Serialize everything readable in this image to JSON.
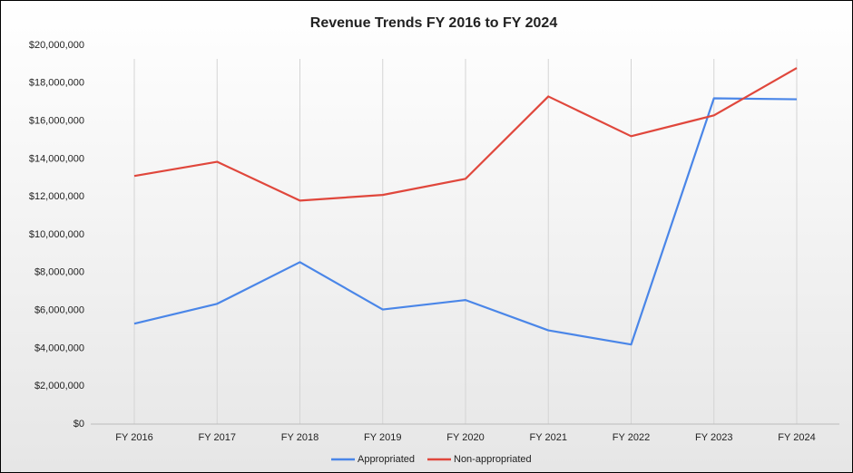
{
  "chart_data": {
    "type": "line",
    "title": "Revenue Trends FY 2016 to FY 2024",
    "categories": [
      "FY 2016",
      "FY 2017",
      "FY 2018",
      "FY 2019",
      "FY 2020",
      "FY 2021",
      "FY 2022",
      "FY 2023",
      "FY 2024"
    ],
    "series": [
      {
        "name": "Appropriated",
        "color": "#4a86e8",
        "values": [
          5300000,
          6350000,
          8550000,
          6050000,
          6550000,
          4950000,
          4200000,
          17200000,
          17150000
        ]
      },
      {
        "name": "Non-appropriated",
        "color": "#e0473c",
        "values": [
          13100000,
          13850000,
          11800000,
          12100000,
          12950000,
          17300000,
          15200000,
          16300000,
          18800000
        ]
      }
    ],
    "ylim": [
      0,
      20000000
    ],
    "yticks": [
      {
        "value": 0,
        "label": "$0"
      },
      {
        "value": 2000000,
        "label": "$2,000,000"
      },
      {
        "value": 4000000,
        "label": "$4,000,000"
      },
      {
        "value": 6000000,
        "label": "$6,000,000"
      },
      {
        "value": 8000000,
        "label": "$8,000,000"
      },
      {
        "value": 10000000,
        "label": "$10,000,000"
      },
      {
        "value": 12000000,
        "label": "$12,000,000"
      },
      {
        "value": 14000000,
        "label": "$14,000,000"
      },
      {
        "value": 16000000,
        "label": "$16,000,000"
      },
      {
        "value": 18000000,
        "label": "$18,000,000"
      },
      {
        "value": 20000000,
        "label": "$20,000,000"
      }
    ],
    "xgrid": true,
    "legend": "bottom"
  }
}
